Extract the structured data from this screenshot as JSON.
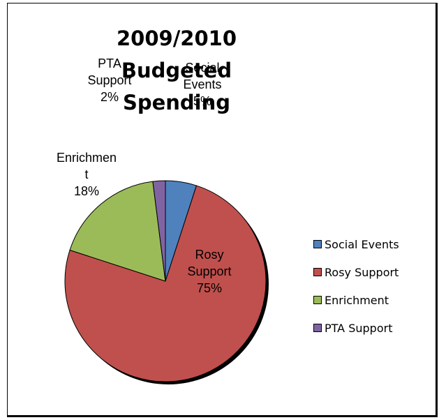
{
  "chart_data": {
    "type": "pie",
    "title": "2009/2010 Budgeted Spending",
    "slices": [
      {
        "name": "Social Events",
        "value": 5,
        "color": "#4f81bd",
        "label_lines": [
          "Social",
          "Events",
          "5%"
        ]
      },
      {
        "name": "Rosy Support",
        "value": 75,
        "color": "#c0504d",
        "label_lines": [
          "Rosy",
          "Support",
          "75%"
        ]
      },
      {
        "name": "Enrichment",
        "value": 18,
        "color": "#9bbb59",
        "label_lines": [
          "Enrichmen",
          "t",
          "18%"
        ]
      },
      {
        "name": "PTA Support",
        "value": 2,
        "color": "#8064a2",
        "label_lines": [
          "PTA",
          "Support",
          "2%"
        ]
      }
    ],
    "legend": {
      "position": "right",
      "entries": [
        "Social Events",
        "Rosy Support",
        "Enrichment",
        "PTA Support"
      ]
    }
  }
}
